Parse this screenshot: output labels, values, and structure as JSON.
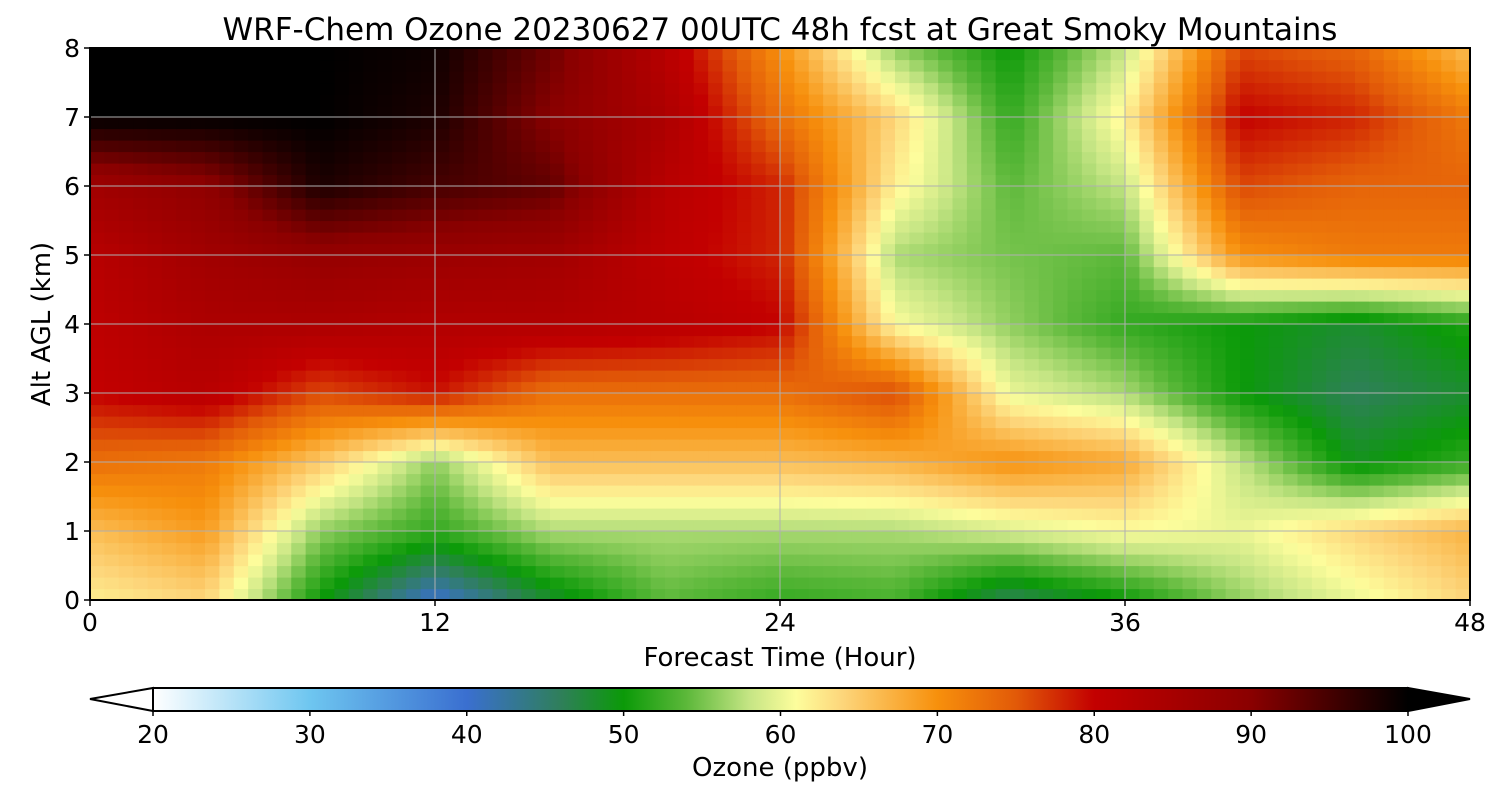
{
  "chart_data": {
    "type": "heatmap",
    "title": "WRF-Chem Ozone  20230627 00UTC 48h fcst at Great Smoky Mountains",
    "xlabel": "Forecast Time (Hour)",
    "ylabel": "Alt AGL (km)",
    "xlim": [
      0,
      48
    ],
    "ylim": [
      0,
      8
    ],
    "xticks": [
      0,
      12,
      24,
      36,
      48
    ],
    "yticks": [
      0,
      1,
      2,
      3,
      4,
      5,
      6,
      7,
      8
    ],
    "grid": true,
    "x": [
      0,
      4,
      8,
      12,
      16,
      20,
      24,
      28,
      32,
      36,
      40,
      44,
      48
    ],
    "y": [
      0,
      1,
      2,
      3,
      4,
      5,
      6,
      7,
      8
    ],
    "z": [
      [
        62,
        64,
        50,
        40,
        48,
        54,
        52,
        53,
        46,
        50,
        56,
        60,
        64
      ],
      [
        66,
        69,
        56,
        52,
        57,
        57,
        57,
        57,
        59,
        61,
        60,
        64,
        67
      ],
      [
        73,
        72,
        65,
        56,
        66,
        66,
        66,
        67,
        70,
        68,
        58,
        49,
        52
      ],
      [
        80,
        82,
        76,
        79,
        73,
        73,
        73,
        76,
        60,
        57,
        50,
        46,
        48
      ],
      [
        81,
        84,
        84,
        83,
        83,
        82,
        80,
        61,
        56,
        52,
        50,
        48,
        51
      ],
      [
        82,
        86,
        88,
        87,
        86,
        81,
        78,
        57,
        55,
        54,
        70,
        72,
        72
      ],
      [
        86,
        89,
        98,
        95,
        93,
        82,
        78,
        62,
        54,
        58,
        76,
        74,
        74
      ],
      [
        100,
        100,
        100,
        98,
        90,
        84,
        73,
        64,
        52,
        62,
        80,
        78,
        72
      ],
      [
        100,
        100,
        100,
        99,
        92,
        82,
        70,
        56,
        50,
        58,
        76,
        74,
        66
      ]
    ],
    "colorbar": {
      "label": "Ozone  (ppbv)",
      "min": 20,
      "max": 100,
      "ticks": [
        20,
        30,
        40,
        50,
        60,
        70,
        80,
        90,
        100
      ],
      "extend": "both",
      "stops": [
        [
          20,
          "#ffffff"
        ],
        [
          30,
          "#6ec6f0"
        ],
        [
          40,
          "#3a6fd0"
        ],
        [
          46,
          "#2f7f5a"
        ],
        [
          50,
          "#0b9a08"
        ],
        [
          54,
          "#5cb83a"
        ],
        [
          58,
          "#c5e584"
        ],
        [
          61,
          "#fdfd9c"
        ],
        [
          64,
          "#fdd57a"
        ],
        [
          70,
          "#f7900c"
        ],
        [
          75,
          "#e25a08"
        ],
        [
          80,
          "#c30000"
        ],
        [
          90,
          "#8a0000"
        ],
        [
          100,
          "#000000"
        ]
      ]
    }
  }
}
